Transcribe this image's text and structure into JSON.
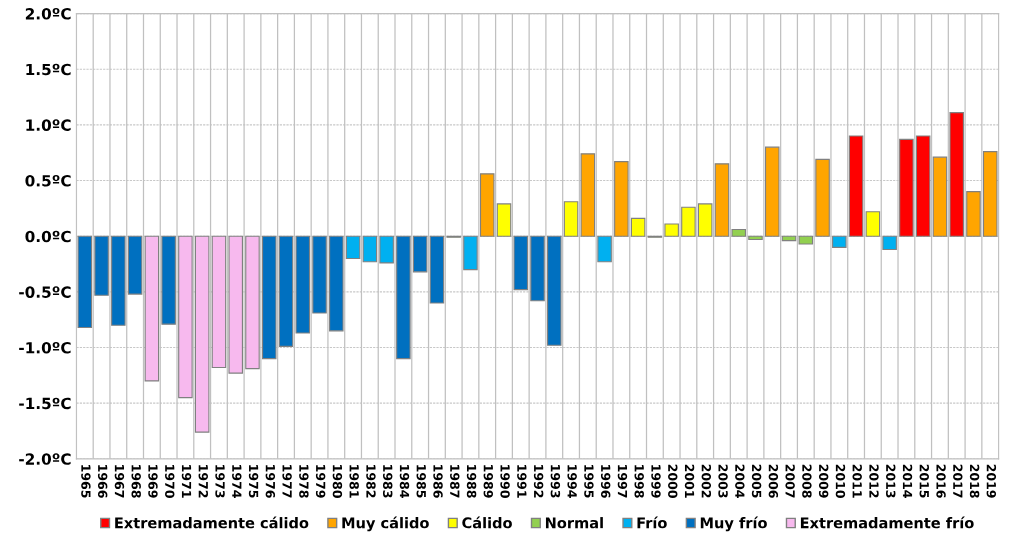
{
  "chart_data": {
    "type": "bar",
    "stacked": true,
    "categories": [
      "1965",
      "1966",
      "1967",
      "1968",
      "1969",
      "1970",
      "1971",
      "1972",
      "1973",
      "1974",
      "1975",
      "1976",
      "1977",
      "1978",
      "1979",
      "1980",
      "1981",
      "1982",
      "1983",
      "1984",
      "1985",
      "1986",
      "1987",
      "1988",
      "1989",
      "1990",
      "1991",
      "1992",
      "1993",
      "1994",
      "1995",
      "1996",
      "1997",
      "1998",
      "1999",
      "2000",
      "2001",
      "2002",
      "2003",
      "2004",
      "2005",
      "2006",
      "2007",
      "2008",
      "2009",
      "2010",
      "2011",
      "2012",
      "2013",
      "2014",
      "2015",
      "2016",
      "2017",
      "2018",
      "2019"
    ],
    "series": [
      {
        "name": "Extremadamente cálido",
        "color": "#ff0000",
        "values": [
          null,
          null,
          null,
          null,
          null,
          null,
          null,
          null,
          null,
          null,
          null,
          null,
          null,
          null,
          null,
          null,
          null,
          null,
          null,
          null,
          null,
          null,
          null,
          null,
          null,
          null,
          null,
          null,
          null,
          null,
          null,
          null,
          null,
          null,
          null,
          null,
          null,
          null,
          null,
          null,
          null,
          null,
          null,
          null,
          null,
          null,
          0.9,
          null,
          null,
          0.87,
          0.9,
          null,
          1.11,
          null,
          null
        ]
      },
      {
        "name": "Muy cálido",
        "color": "#ffa500",
        "values": [
          null,
          null,
          null,
          null,
          null,
          null,
          null,
          null,
          null,
          null,
          null,
          null,
          null,
          null,
          null,
          null,
          null,
          null,
          null,
          null,
          null,
          null,
          null,
          null,
          0.56,
          null,
          null,
          null,
          null,
          null,
          0.74,
          null,
          0.67,
          null,
          null,
          null,
          null,
          null,
          0.65,
          null,
          null,
          0.8,
          null,
          null,
          0.69,
          null,
          null,
          null,
          null,
          null,
          null,
          0.71,
          null,
          0.4,
          0.76
        ]
      },
      {
        "name": "Cálido",
        "color": "#ffff00",
        "values": [
          null,
          null,
          null,
          null,
          null,
          null,
          null,
          null,
          null,
          null,
          null,
          null,
          null,
          null,
          null,
          null,
          null,
          null,
          null,
          null,
          null,
          null,
          null,
          null,
          null,
          0.29,
          null,
          null,
          null,
          0.31,
          null,
          null,
          null,
          0.16,
          null,
          0.11,
          0.26,
          0.29,
          null,
          null,
          null,
          null,
          null,
          null,
          null,
          null,
          null,
          0.22,
          null,
          null,
          null,
          null,
          null,
          null,
          null
        ]
      },
      {
        "name": "Normal",
        "color": "#92d050",
        "values": [
          null,
          null,
          null,
          null,
          null,
          null,
          null,
          null,
          null,
          null,
          null,
          null,
          null,
          null,
          null,
          null,
          null,
          null,
          null,
          null,
          null,
          null,
          -0.01,
          null,
          null,
          null,
          null,
          null,
          null,
          null,
          null,
          null,
          null,
          null,
          -0.01,
          null,
          null,
          null,
          null,
          0.06,
          -0.03,
          null,
          -0.04,
          -0.07,
          null,
          null,
          null,
          null,
          null,
          null,
          null,
          null,
          null,
          null,
          null
        ]
      },
      {
        "name": "Frío",
        "color": "#00b0f0",
        "values": [
          null,
          null,
          null,
          null,
          null,
          null,
          null,
          null,
          null,
          null,
          null,
          null,
          null,
          null,
          null,
          null,
          -0.2,
          -0.23,
          -0.24,
          null,
          null,
          null,
          null,
          -0.3,
          null,
          null,
          null,
          null,
          null,
          null,
          null,
          -0.23,
          null,
          null,
          null,
          null,
          null,
          null,
          null,
          null,
          null,
          null,
          null,
          null,
          null,
          -0.1,
          null,
          null,
          -0.12,
          null,
          null,
          null,
          null,
          null,
          null
        ]
      },
      {
        "name": "Muy frío",
        "color": "#0070c0",
        "values": [
          -0.82,
          -0.53,
          -0.8,
          -0.52,
          null,
          -0.79,
          null,
          null,
          null,
          null,
          null,
          -1.1,
          -0.99,
          -0.87,
          -0.69,
          -0.85,
          null,
          null,
          null,
          -1.1,
          -0.32,
          -0.6,
          null,
          null,
          null,
          null,
          -0.48,
          -0.58,
          -0.98,
          null,
          null,
          null,
          null,
          null,
          null,
          null,
          null,
          null,
          null,
          null,
          null,
          null,
          null,
          null,
          null,
          null,
          null,
          null,
          null,
          null,
          null,
          null,
          null,
          null,
          null
        ]
      },
      {
        "name": "Extremadamente frío",
        "color": "#f7b9ee",
        "values": [
          null,
          null,
          null,
          null,
          -1.3,
          null,
          -1.45,
          -1.76,
          -1.18,
          -1.23,
          -1.19,
          null,
          null,
          null,
          null,
          null,
          null,
          null,
          null,
          null,
          null,
          null,
          null,
          null,
          null,
          null,
          null,
          null,
          null,
          null,
          null,
          null,
          null,
          null,
          null,
          null,
          null,
          null,
          null,
          null,
          null,
          null,
          null,
          null,
          null,
          null,
          null,
          null,
          null,
          null,
          null,
          null,
          null,
          null,
          null
        ]
      }
    ],
    "ylim": [
      -2.0,
      2.0
    ],
    "yticks": [
      {
        "value": -2.0,
        "label": "-2.0ºC"
      },
      {
        "value": -1.5,
        "label": "-1.5ºC"
      },
      {
        "value": -1.0,
        "label": "-1.0ºC"
      },
      {
        "value": -0.5,
        "label": "-0.5ºC"
      },
      {
        "value": 0.0,
        "label": "0.0ºC"
      },
      {
        "value": 0.5,
        "label": "0.5ºC"
      },
      {
        "value": 1.0,
        "label": "1.0ºC"
      },
      {
        "value": 1.5,
        "label": "1.5ºC"
      },
      {
        "value": 2.0,
        "label": "2.0ºC"
      }
    ],
    "grid": true,
    "legend": "bottom"
  }
}
